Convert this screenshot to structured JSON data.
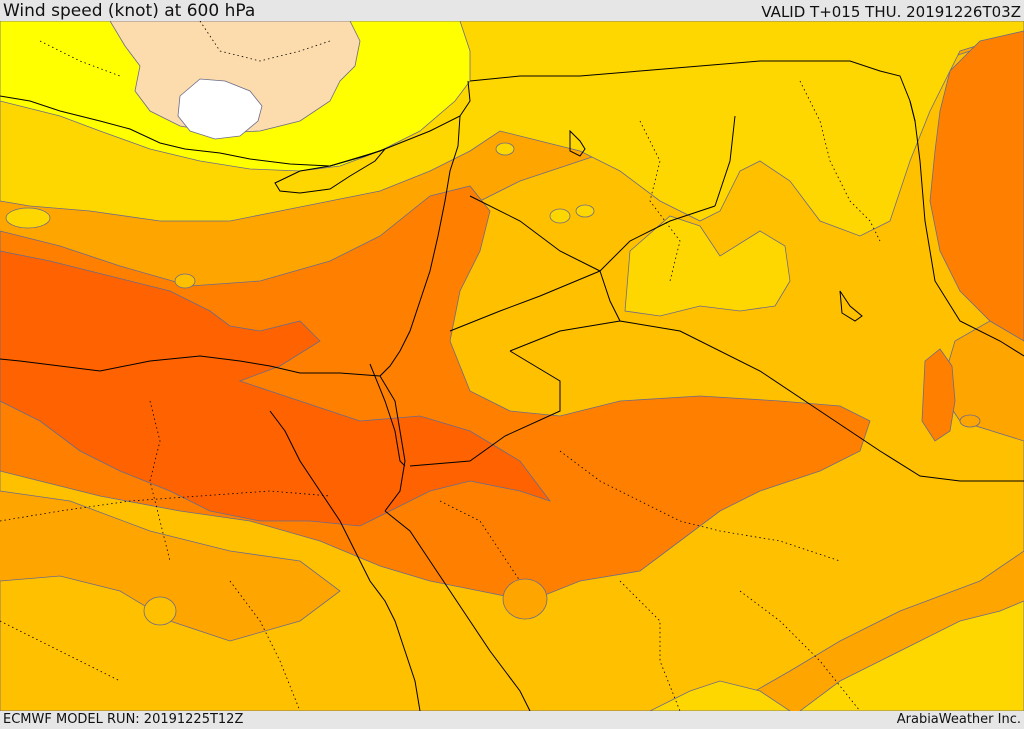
{
  "header": {
    "title": "Wind speed (knot) at 600 hPa",
    "valid": "VALID T+015 THU. 20191226T03Z"
  },
  "footer": {
    "model_run": "ECMWF MODEL RUN: 20191225T12Z",
    "credit": "ArabiaWeather Inc."
  },
  "map": {
    "field": "wind speed",
    "level": "600 hPa",
    "colors": {
      "calm": "#ffffff",
      "very_light": "#fcdcac",
      "light": "#ffff00",
      "moderate_low": "#ffd700",
      "moderate": "#ffc000",
      "moderate_high": "#ffa500",
      "strong": "#ff8000",
      "very_strong": "#ff6200",
      "contour": "#6b6b8a",
      "boundary": "#000000"
    }
  }
}
